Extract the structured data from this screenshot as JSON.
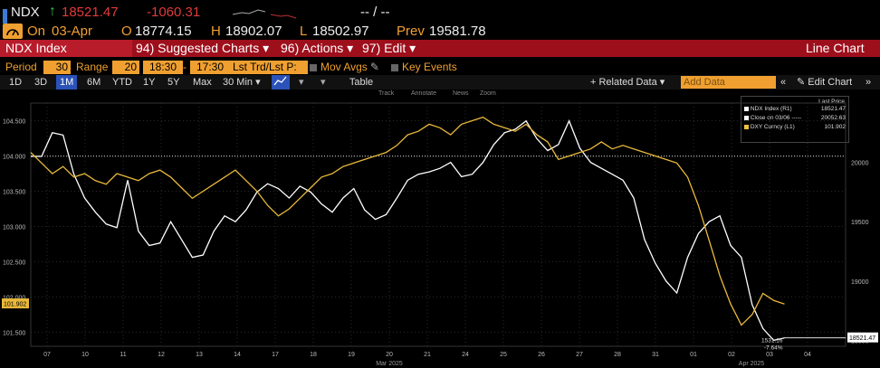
{
  "quote": {
    "ticker": "NDX",
    "arrow": "↑",
    "last": "18521.47",
    "change": "-1060.31",
    "bidask": "-- / --",
    "on_label": "On",
    "date": "03-Apr",
    "open_label": "O",
    "open": "18774.15",
    "high_label": "H",
    "high": "18902.07",
    "low_label": "L",
    "low": "18502.97",
    "prev_label": "Prev",
    "prev": "19581.78"
  },
  "menubar": {
    "security": "NDX Index",
    "suggested": "94) Suggested Charts ▾",
    "actions": "96) Actions ▾",
    "edit": "97) Edit ▾",
    "chart_type": "Line Chart"
  },
  "params": {
    "period_label": "Period",
    "period_value": "30",
    "range_label": "Range",
    "range_value": "20",
    "time_from": "18:30",
    "dash": "-",
    "time_to": "17:30",
    "lst": "Lst Trd/Lst P:",
    "mov_avgs": "Mov Avgs",
    "key_events": "Key Events"
  },
  "toolbar": {
    "ranges": [
      "1D",
      "3D",
      "1M",
      "6M",
      "YTD",
      "1Y",
      "5Y",
      "Max"
    ],
    "selected": "1M",
    "interval": "30 Min ▾",
    "table": "Table",
    "related": "+ Related Data ▾",
    "add_data_placeholder": "Add Data",
    "edit_chart": "✎ Edit Chart",
    "tools": [
      "Track",
      "Annotate",
      "News",
      "Zoom"
    ]
  },
  "legend": {
    "header": "Last Price",
    "items": [
      {
        "name": "NDX Index (R1)",
        "value": "18521.47",
        "color": "#ffffff"
      },
      {
        "name": "Close on 03/06 -----",
        "value": "20052.63",
        "color": "#ffffff"
      },
      {
        "name": "DXY Curncy (L1)",
        "value": "101.902",
        "color": "#f0c040"
      }
    ]
  },
  "chart_data": {
    "type": "line",
    "x_ticks": [
      "07",
      "10",
      "11",
      "12",
      "13",
      "14",
      "17",
      "18",
      "19",
      "20",
      "21",
      "24",
      "25",
      "26",
      "27",
      "28",
      "31",
      "01",
      "02",
      "03",
      "04"
    ],
    "month_labels": [
      "Mar 2025",
      "Apr 2025"
    ],
    "left_axis": {
      "ticks": [
        "104.500",
        "104.000",
        "103.500",
        "103.000",
        "102.500",
        "102.000",
        "101.500"
      ],
      "range": [
        101.3,
        104.75
      ]
    },
    "right_axis": {
      "ticks": [
        "20000",
        "19500",
        "19000",
        "18500"
      ],
      "range": [
        18450,
        20500
      ]
    },
    "reference_line": {
      "label": "Close on 03/06",
      "value": 20052.63
    },
    "current_tag_left": "101.902",
    "current_tag_right": "18521.47",
    "annotation": {
      "value": "1531.16",
      "pct": "-7.64%"
    },
    "colors": {
      "ndx": "#ffffff",
      "dxy": "#e8b83a",
      "grid": "#2a2a2a"
    },
    "series": [
      {
        "name": "NDX Index",
        "axis": "right",
        "values": [
          20052,
          20050,
          20250,
          20230,
          19900,
          19700,
          19580,
          19480,
          19450,
          19850,
          19420,
          19300,
          19320,
          19500,
          19350,
          19200,
          19220,
          19420,
          19550,
          19500,
          19600,
          19750,
          19820,
          19780,
          19700,
          19800,
          19750,
          19650,
          19580,
          19700,
          19780,
          19600,
          19520,
          19560,
          19700,
          19850,
          19900,
          19920,
          19950,
          20000,
          19880,
          19900,
          20000,
          20150,
          20250,
          20280,
          20350,
          20200,
          20100,
          20150,
          20350,
          20120,
          20000,
          19950,
          19900,
          19850,
          19700,
          19350,
          19150,
          19000,
          18900,
          19200,
          19400,
          19500,
          19550,
          19300,
          19200,
          18800,
          18600,
          18500,
          18521
        ]
      },
      {
        "name": "DXY Curncy",
        "axis": "left",
        "values": [
          104.05,
          103.9,
          103.75,
          103.85,
          103.7,
          103.75,
          103.65,
          103.6,
          103.75,
          103.7,
          103.65,
          103.75,
          103.8,
          103.7,
          103.55,
          103.4,
          103.5,
          103.6,
          103.7,
          103.8,
          103.65,
          103.5,
          103.3,
          103.15,
          103.25,
          103.4,
          103.55,
          103.7,
          103.75,
          103.85,
          103.9,
          103.95,
          104.0,
          104.05,
          104.15,
          104.3,
          104.35,
          104.45,
          104.4,
          104.3,
          104.45,
          104.5,
          104.55,
          104.45,
          104.4,
          104.35,
          104.45,
          104.3,
          104.2,
          103.95,
          104.0,
          104.05,
          104.1,
          104.2,
          104.1,
          104.15,
          104.1,
          104.05,
          104.0,
          103.95,
          103.9,
          103.7,
          103.3,
          102.8,
          102.3,
          101.9,
          101.6,
          101.75,
          102.05,
          101.95,
          101.9
        ]
      }
    ]
  }
}
